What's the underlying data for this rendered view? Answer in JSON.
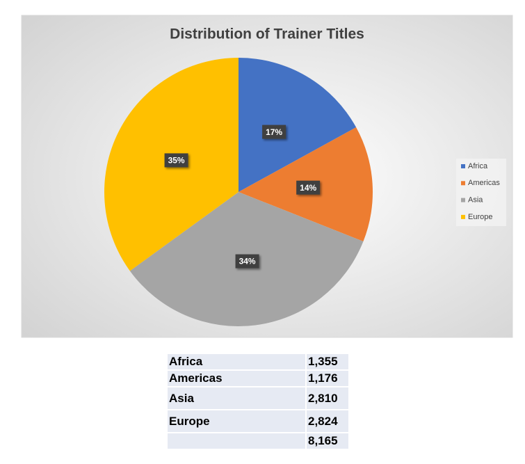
{
  "chart_data": {
    "type": "pie",
    "title": "Distribution of Trainer Titles",
    "categories": [
      "Africa",
      "Americas",
      "Asia",
      "Europe"
    ],
    "values": [
      17,
      14,
      34,
      35
    ],
    "value_labels": [
      "17%",
      "14%",
      "34%",
      "35%"
    ],
    "colors": [
      "#4472c4",
      "#ed7d31",
      "#a5a5a5",
      "#ffc000"
    ],
    "legend": "right"
  },
  "table": {
    "rows": [
      [
        "Africa",
        "1,355"
      ],
      [
        "Americas",
        "1,176"
      ],
      [
        "Asia",
        "2,810"
      ],
      [
        "Europe",
        "2,824"
      ]
    ],
    "total": "8,165"
  }
}
